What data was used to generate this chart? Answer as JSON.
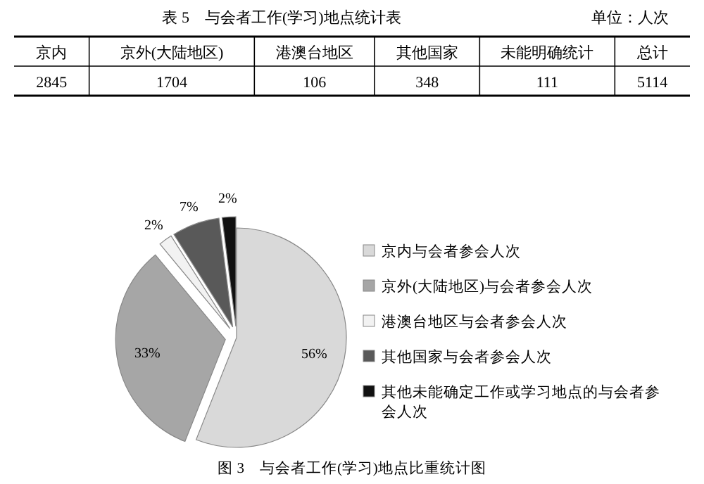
{
  "chart_data": [
    {
      "type": "other",
      "title": "表 5　与会者工作(学习)地点统计表",
      "annotations": [
        "单位：人次"
      ],
      "categories": [
        "京内",
        "京外(大陆地区)",
        "港澳台地区",
        "其他国家",
        "未能明确统计",
        "总计"
      ],
      "values": [
        2845,
        1704,
        106,
        348,
        111,
        5114
      ],
      "data_labels": true
    },
    {
      "type": "pie",
      "categories": [
        "京内与会者参会人次",
        "京外(大陆地区)与会者参会人次",
        "港澳台地区与会者参会人次",
        "其他国家与会者参会人次",
        "其他未能确定工作或学习地点的与会者参会人次"
      ],
      "values": [
        56,
        33,
        2,
        7,
        2
      ],
      "colors": [
        "#d9d9d9",
        "#a6a6a6",
        "#f2f2f2",
        "#595959",
        "#111111"
      ],
      "value_labels": [
        "56%",
        "33%",
        "2%",
        "7%",
        "2%"
      ],
      "legend": "right",
      "annotations": [
        "图 3　与会者工作(学习)地点比重统计图"
      ]
    }
  ]
}
